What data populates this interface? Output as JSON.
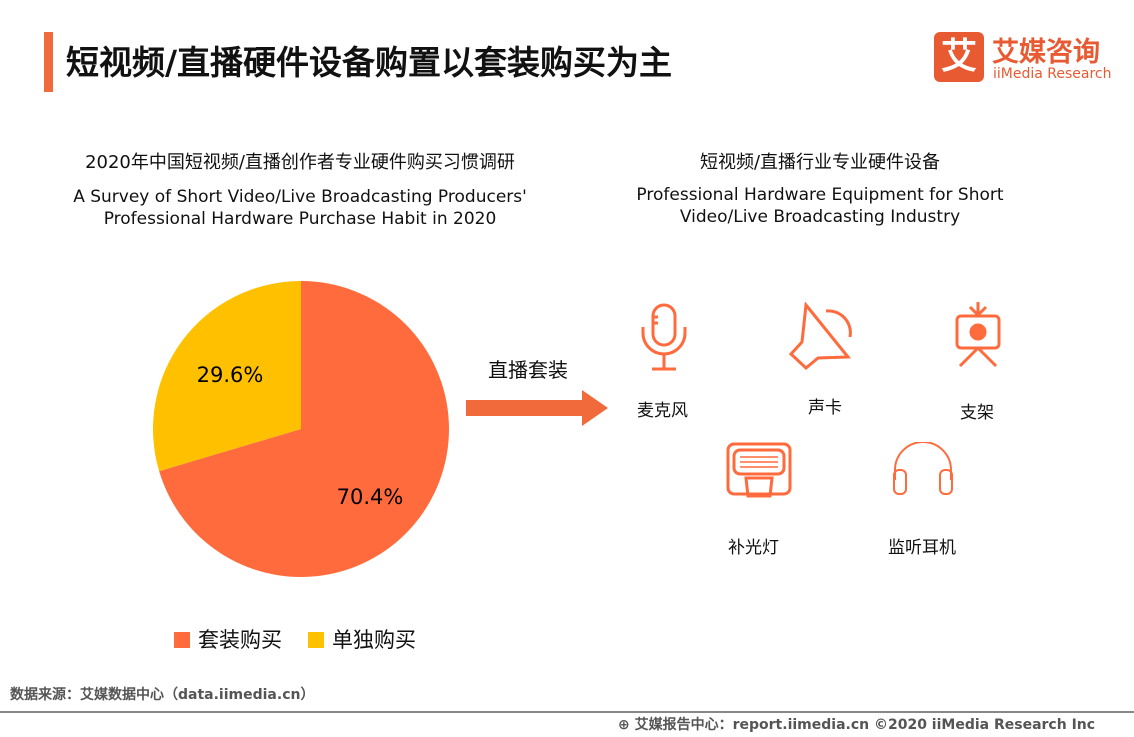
{
  "header": {
    "title": "短视频/直播硬件设备购置以套装购买为主",
    "logo_cn": "艾媒咨询",
    "logo_en": "iiMedia Research",
    "logo_mark": "艾"
  },
  "left": {
    "title_cn": "2020年中国短视频/直播创作者专业硬件购买习惯调研",
    "title_en_1": "A Survey of Short Video/Live Broadcasting Producers'",
    "title_en_2": "Professional Hardware Purchase Habit in 2020"
  },
  "right": {
    "title_cn": "短视频/直播行业专业硬件设备",
    "title_en_1": "Professional Hardware Equipment for Short",
    "title_en_2": "Video/Live Broadcasting Industry",
    "arrow_label": "直播套装",
    "items": [
      {
        "label": "麦克风",
        "icon": "microphone-icon"
      },
      {
        "label": "声卡",
        "icon": "speaker-icon"
      },
      {
        "label": "支架",
        "icon": "tripod-camera-icon"
      },
      {
        "label": "补光灯",
        "icon": "fill-light-icon"
      },
      {
        "label": "监听耳机",
        "icon": "headphones-icon"
      }
    ]
  },
  "chart_data": {
    "type": "pie",
    "title": "2020年中国短视频/直播创作者专业硬件购买习惯调研",
    "slices": [
      {
        "label": "套装购买",
        "value": 70.4,
        "display": "70.4%",
        "color": "#ff6b3d"
      },
      {
        "label": "单独购买",
        "value": 29.6,
        "display": "29.6%",
        "color": "#ffc000"
      }
    ],
    "legend": "bottom"
  },
  "footer": {
    "source": "数据来源：艾媒数据中心（data.iimedia.cn）",
    "report": "艾媒报告中心：report.iimedia.cn   ©2020  iiMedia Research  Inc"
  }
}
